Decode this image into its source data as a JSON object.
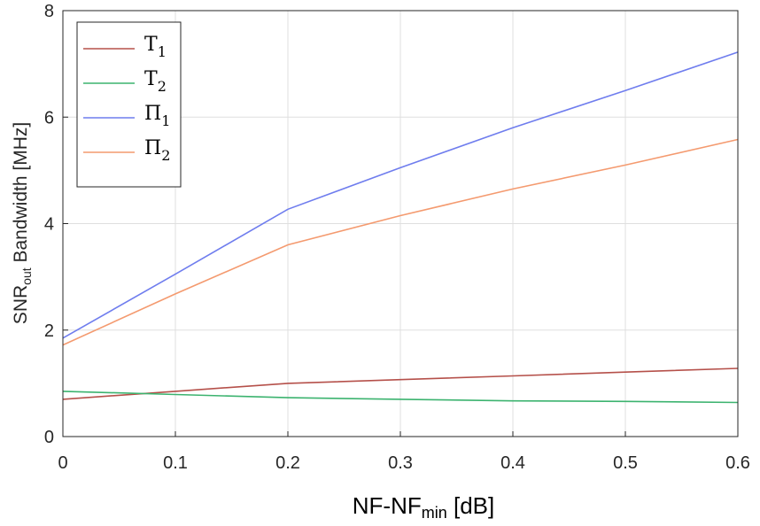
{
  "chart_data": {
    "type": "line",
    "xlabel": {
      "main": "NF-NF",
      "sub": "min",
      "unit": " [dB]"
    },
    "ylabel": {
      "main": "SNR",
      "sub": "out",
      "rest": " Bandwidth [MHz]"
    },
    "xlim": [
      0,
      0.6
    ],
    "ylim": [
      0,
      8
    ],
    "xticks": [
      "0",
      "0.1",
      "0.2",
      "0.3",
      "0.4",
      "0.5",
      "0.6"
    ],
    "yticks": [
      "0",
      "2",
      "4",
      "6",
      "8"
    ],
    "grid": true,
    "legend_position": "top-left",
    "x": [
      0,
      0.1,
      0.2,
      0.3,
      0.4,
      0.5,
      0.6
    ],
    "series": [
      {
        "name": "T",
        "sub": "1",
        "color": "#b5504a",
        "values": [
          0.7,
          0.85,
          1.0,
          1.07,
          1.14,
          1.21,
          1.28
        ]
      },
      {
        "name": "T",
        "sub": "2",
        "color": "#3cb36f",
        "values": [
          0.85,
          0.79,
          0.73,
          0.7,
          0.67,
          0.66,
          0.64
        ]
      },
      {
        "name": "Π",
        "sub": "1",
        "color": "#6f7dee",
        "values": [
          1.85,
          3.05,
          4.27,
          5.05,
          5.8,
          6.5,
          7.22
        ]
      },
      {
        "name": "Π",
        "sub": "2",
        "color": "#f49a6f",
        "values": [
          1.72,
          2.68,
          3.6,
          4.15,
          4.65,
          5.1,
          5.58
        ]
      }
    ]
  }
}
